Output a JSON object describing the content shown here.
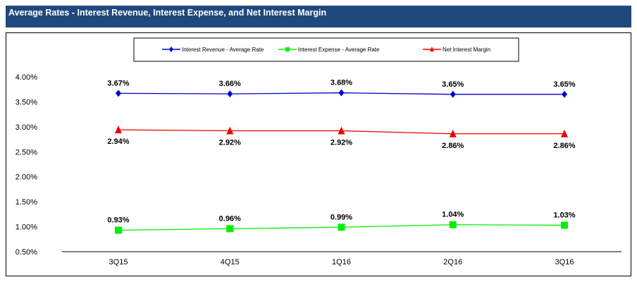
{
  "header": {
    "title": "Average Rates - Interest Revenue, Interest Expense, and Net Interest Margin"
  },
  "chart_data": {
    "type": "line",
    "title": "Average Rates - Interest Revenue, Interest Expense, and Net Interest Margin",
    "categories": [
      "3Q15",
      "4Q15",
      "1Q16",
      "2Q16",
      "3Q16"
    ],
    "ylim": [
      0.5,
      4.0
    ],
    "yticks": [
      "0.50%",
      "1.00%",
      "1.50%",
      "2.00%",
      "2.50%",
      "3.00%",
      "3.50%",
      "4.00%"
    ],
    "grid": false,
    "legend": "top",
    "series": [
      {
        "name": "Interest Revenue - Average Rate",
        "values": [
          3.67,
          3.66,
          3.68,
          3.65,
          3.65
        ],
        "labels": [
          "3.67%",
          "3.66%",
          "3.68%",
          "3.65%",
          "3.65%"
        ],
        "color": "#0000cc",
        "marker": "diamond"
      },
      {
        "name": "Interest Expense - Average Rate",
        "values": [
          0.93,
          0.96,
          0.99,
          1.04,
          1.03
        ],
        "labels": [
          "0.93%",
          "0.96%",
          "0.99%",
          "1.04%",
          "1.03%"
        ],
        "color": "#00ee00",
        "marker": "square"
      },
      {
        "name": "Net Interest Margin",
        "values": [
          2.94,
          2.92,
          2.92,
          2.86,
          2.86
        ],
        "labels": [
          "2.94%",
          "2.92%",
          "2.92%",
          "2.86%",
          "2.86%"
        ],
        "color": "#ee0000",
        "marker": "triangle"
      }
    ]
  }
}
